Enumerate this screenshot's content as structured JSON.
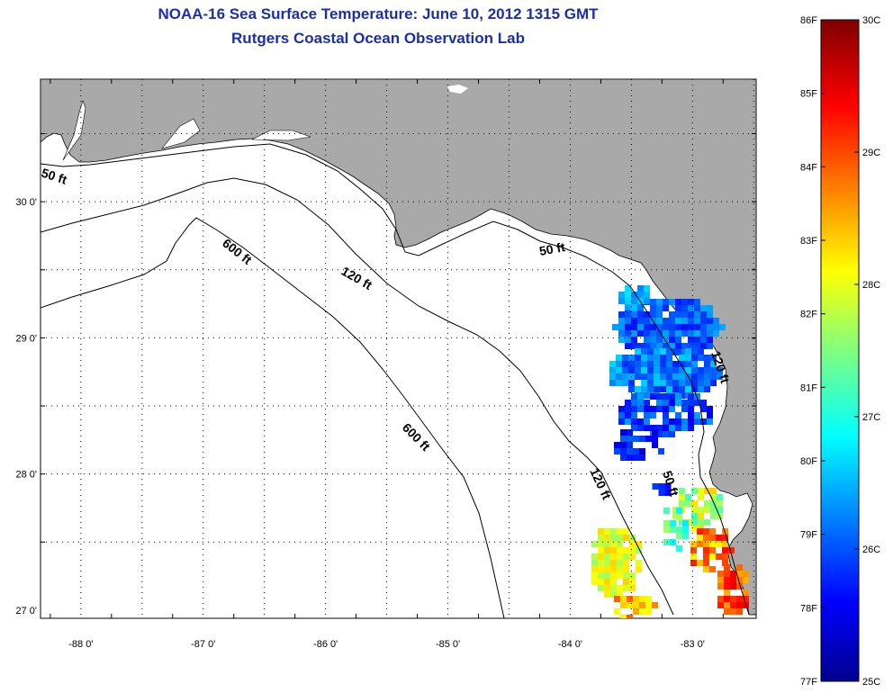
{
  "title": {
    "line1": "NOAA-16 Sea Surface Temperature:  June 10, 2012 1315 GMT",
    "line2": "Rutgers Coastal Ocean Observation Lab"
  },
  "axes": {
    "lon_ticks": [
      "-88 0'",
      "-87 0'",
      "-86 0'",
      "-85 0'",
      "-84 0'",
      "-83 0'"
    ],
    "lon_values": [
      -88,
      -87,
      -86,
      -85,
      -84,
      -83
    ],
    "lat_ticks": [
      "30 0'",
      "29 0'",
      "28 0'",
      "27 0'"
    ],
    "lat_values": [
      30,
      29,
      28,
      27
    ],
    "lon_range": [
      -88.33,
      -82.48
    ],
    "lat_range": [
      26.94,
      30.9
    ]
  },
  "contours": [
    {
      "label": "50 ft"
    },
    {
      "label": "120 ft"
    },
    {
      "label": "600 ft"
    },
    {
      "label": "50 ft"
    },
    {
      "label": "120 ft"
    },
    {
      "label": "600 ft"
    },
    {
      "label": "50 ft"
    },
    {
      "label": "120 ft"
    }
  ],
  "colorbar": {
    "f_labels": [
      "86F",
      "85F",
      "84F",
      "83F",
      "82F",
      "81F",
      "80F",
      "79F",
      "78F",
      "77F"
    ],
    "f_values": [
      86,
      85,
      84,
      83,
      82,
      81,
      80,
      79,
      78,
      77
    ],
    "c_labels": [
      "30C",
      "29C",
      "28C",
      "27C",
      "26C",
      "25C"
    ],
    "c_values": [
      30,
      29,
      28,
      27,
      26,
      25
    ]
  },
  "colors": {
    "land": "#a9a9a9",
    "water": "#ffffff",
    "title": "#1a2fa8"
  }
}
